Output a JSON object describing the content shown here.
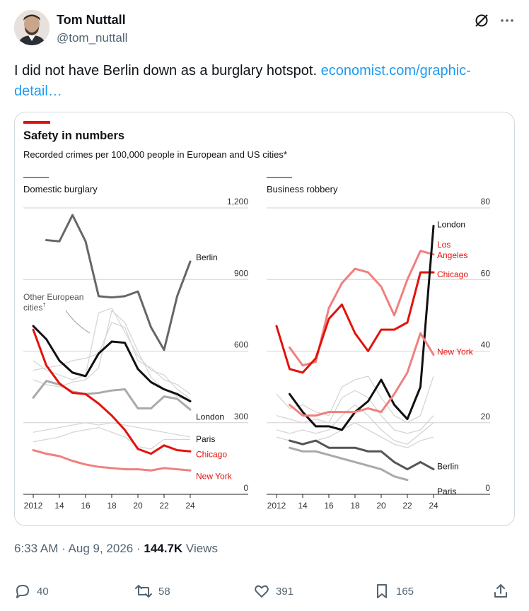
{
  "author": {
    "name": "Tom Nuttall",
    "handle": "@tom_nuttall"
  },
  "tweet": {
    "text": "I did not have Berlin down as a burglary hotspot. ",
    "link_text": "economist.com/graphic-detail…"
  },
  "chart_header": {
    "title": "Safety in numbers",
    "subtitle": "Recorded crimes per 100,000 people in European and US cities*",
    "accent_color": "#e3120b"
  },
  "chart_data": [
    {
      "type": "line",
      "title": "Domestic burglary",
      "ylim": [
        0,
        1200
      ],
      "yticks": [
        "0",
        "300",
        "600",
        "900",
        "1,200"
      ],
      "xticks": [
        "2012",
        "14",
        "16",
        "18",
        "20",
        "22",
        "24"
      ],
      "x": [
        2012,
        2013,
        2014,
        2015,
        2016,
        2017,
        2018,
        2019,
        2020,
        2021,
        2022,
        2023,
        2024
      ],
      "series": [
        {
          "name": "Berlin",
          "color": "#666666",
          "width": 3,
          "values": [
            null,
            1065,
            1060,
            1170,
            1060,
            830,
            825,
            830,
            850,
            700,
            605,
            830,
            975
          ]
        },
        {
          "name": "London",
          "color": "#111111",
          "width": 3,
          "values": [
            705,
            650,
            560,
            510,
            495,
            590,
            640,
            635,
            525,
            470,
            440,
            420,
            390
          ]
        },
        {
          "name": "Paris",
          "color": "#aaaaaa",
          "width": 3,
          "values": [
            405,
            475,
            460,
            430,
            420,
            425,
            435,
            440,
            360,
            360,
            410,
            400,
            355
          ]
        },
        {
          "name": "Chicago",
          "color": "#e3120b",
          "width": 3,
          "values": [
            690,
            540,
            465,
            425,
            420,
            380,
            330,
            270,
            190,
            170,
            205,
            185,
            180
          ]
        },
        {
          "name": "New York",
          "color": "#f08080",
          "width": 3,
          "values": [
            185,
            170,
            160,
            140,
            125,
            115,
            110,
            105,
            105,
            100,
            110,
            105,
            100
          ]
        }
      ],
      "background_series": [
        [
          520,
          530,
          540,
          560,
          570,
          590,
          720,
          700,
          560,
          530,
          480,
          460,
          420
        ],
        [
          480,
          460,
          450,
          470,
          480,
          530,
          770,
          720,
          600,
          490,
          440,
          410,
          390
        ],
        [
          560,
          520,
          500,
          480,
          500,
          760,
          780,
          680,
          580,
          520,
          500,
          440,
          400
        ],
        [
          260,
          270,
          280,
          290,
          300,
          290,
          300,
          290,
          280,
          270,
          260,
          250,
          240
        ],
        [
          220,
          230,
          240,
          260,
          270,
          280,
          260,
          240,
          200,
          190,
          230,
          230,
          230
        ]
      ],
      "annotations": [
        {
          "text": "Berlin",
          "series": "Berlin"
        },
        {
          "text": "London",
          "series": "London"
        },
        {
          "text": "Paris",
          "series": "Paris"
        },
        {
          "text": "Chicago",
          "series": "Chicago"
        },
        {
          "text": "New York",
          "series": "New York"
        }
      ],
      "other_label": [
        "Other European",
        "cities"
      ],
      "other_sup": "†"
    },
    {
      "type": "line",
      "title": "Business robbery",
      "ylim": [
        0,
        80
      ],
      "yticks": [
        "0",
        "20",
        "40",
        "60",
        "80"
      ],
      "xticks": [
        "2012",
        "14",
        "16",
        "18",
        "20",
        "22",
        "24"
      ],
      "x": [
        2012,
        2013,
        2014,
        2015,
        2016,
        2017,
        2018,
        2019,
        2020,
        2021,
        2022,
        2023,
        2024
      ],
      "series": [
        {
          "name": "Los Angeles",
          "color": "#f08080",
          "width": 3,
          "values": [
            null,
            41,
            36,
            37,
            52,
            59,
            63,
            62,
            58,
            50,
            60,
            68,
            67
          ]
        },
        {
          "name": "Chicago",
          "color": "#e3120b",
          "width": 3,
          "values": [
            47,
            35,
            34,
            38,
            49,
            53,
            45,
            40,
            46,
            46,
            48,
            62,
            62
          ]
        },
        {
          "name": "London",
          "color": "#111111",
          "width": 3,
          "values": [
            null,
            28,
            23,
            19,
            19,
            18,
            23,
            26,
            32,
            25,
            21,
            30,
            75
          ]
        },
        {
          "name": "New York",
          "color": "#f08080",
          "width": 3,
          "values": [
            null,
            25,
            22,
            22,
            23,
            23,
            23,
            24,
            23,
            28,
            34,
            45,
            39
          ]
        },
        {
          "name": "Berlin",
          "color": "#555555",
          "width": 3,
          "values": [
            null,
            15,
            14,
            15,
            13,
            13,
            13,
            12,
            12,
            9,
            7,
            9,
            7
          ]
        },
        {
          "name": "Paris",
          "color": "#aaaaaa",
          "width": 3,
          "values": [
            null,
            13,
            12,
            12,
            11,
            10,
            9,
            8,
            7,
            5,
            4,
            null,
            null
          ]
        }
      ],
      "background_series": [
        [
          28,
          24,
          25,
          23,
          22,
          30,
          32,
          33,
          27,
          22,
          20,
          22,
          33
        ],
        [
          22,
          21,
          20,
          21,
          20,
          27,
          29,
          27,
          22,
          18,
          17,
          18,
          22
        ],
        [
          18,
          17,
          18,
          17,
          18,
          22,
          25,
          22,
          18,
          15,
          14,
          17,
          20
        ],
        [
          16,
          15,
          14,
          15,
          16,
          18,
          20,
          18,
          16,
          14,
          13,
          15,
          16
        ]
      ],
      "annotations": [
        {
          "text": "London",
          "series": "London"
        },
        {
          "text": "Los",
          "series": "Los Angeles"
        },
        {
          "text": "Angeles",
          "series": "Los Angeles"
        },
        {
          "text": "Chicago",
          "series": "Chicago"
        },
        {
          "text": "New York",
          "series": "New York"
        },
        {
          "text": "Berlin",
          "series": "Berlin"
        },
        {
          "text": "Paris",
          "series": "Paris"
        }
      ]
    }
  ],
  "meta": {
    "time": "6:33 AM",
    "sep": " · ",
    "date": "Aug 9, 2026",
    "views_count": "144.7K",
    "views_label": " Views"
  },
  "actions": {
    "replies": "40",
    "reposts": "58",
    "likes": "391",
    "bookmarks": "165"
  },
  "icons": [
    "grok-icon",
    "more-icon",
    "reply-icon",
    "repost-icon",
    "like-icon",
    "bookmark-icon",
    "share-icon"
  ]
}
